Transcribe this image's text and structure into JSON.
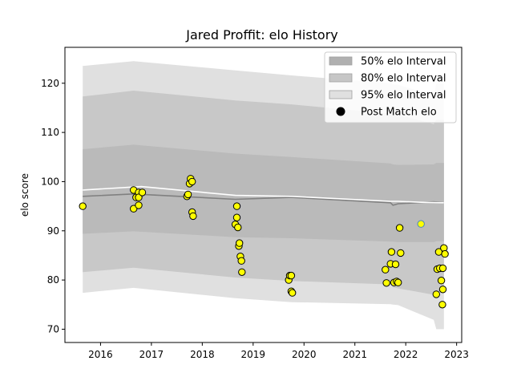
{
  "chart_data": {
    "type": "scatter",
    "title": "Jared Proffit: elo History",
    "xlabel": "",
    "ylabel": "elo score",
    "xlim": [
      2015.3,
      2023.1
    ],
    "ylim": [
      67.3,
      127.3
    ],
    "x_ticks": [
      2016,
      2017,
      2018,
      2019,
      2020,
      2021,
      2022,
      2023
    ],
    "x_tick_labels": [
      "2016",
      "2017",
      "2018",
      "2019",
      "2020",
      "2021",
      "2022",
      "2023"
    ],
    "y_ticks": [
      70,
      80,
      90,
      100,
      110,
      120
    ],
    "y_tick_labels": [
      "70",
      "80",
      "90",
      "100",
      "110",
      "120"
    ],
    "grid": false,
    "legend_position": "top-right",
    "legend": [
      {
        "label": "50% elo Interval",
        "kind": "band",
        "color": "#b0b0b0"
      },
      {
        "label": "80% elo Interval",
        "kind": "band",
        "color": "#c6c6c6"
      },
      {
        "label": "95% elo Interval",
        "kind": "band",
        "color": "#e0e0e0"
      },
      {
        "label": "Post Match elo",
        "kind": "marker",
        "color": "#000000"
      }
    ],
    "bands": {
      "x": [
        2015.65,
        2016.65,
        2018.65,
        2019.75,
        2021.7,
        2021.75,
        2021.85,
        2022.55,
        2022.6,
        2022.75
      ],
      "p95": {
        "upper": [
          123.5,
          124.5,
          122.6,
          121.6,
          120.0,
          119.8,
          119.7,
          117.5,
          119.9,
          119.9
        ],
        "lower": [
          77.4,
          78.4,
          76.3,
          75.5,
          75.1,
          75.0,
          74.9,
          71.9,
          70.0,
          70.0
        ]
      },
      "p80": {
        "upper": [
          117.3,
          118.5,
          116.5,
          115.7,
          113.8,
          113.7,
          113.6,
          111.7,
          112.6,
          112.6
        ],
        "lower": [
          81.6,
          82.5,
          80.5,
          79.8,
          79.1,
          78.5,
          78.3,
          77.0,
          77.5,
          77.5
        ]
      },
      "p50": {
        "upper": [
          106.6,
          107.5,
          105.7,
          105.0,
          103.7,
          103.5,
          103.4,
          103.5,
          103.8,
          103.8
        ],
        "lower": [
          89.4,
          89.9,
          88.7,
          88.5,
          87.8,
          87.8,
          87.7,
          87.7,
          87.9,
          87.9
        ]
      }
    },
    "series": [
      {
        "kind": "line",
        "color": "#808080",
        "x": [
          2015.65,
          2016.65,
          2018.65,
          2019.75,
          2021.7,
          2021.75,
          2021.85,
          2022.55,
          2022.75
        ],
        "y": [
          97.0,
          97.5,
          96.4,
          96.8,
          95.7,
          95.2,
          95.5,
          95.9,
          95.7
        ]
      },
      {
        "kind": "line",
        "color": "#ffffff",
        "x": [
          2015.65,
          2016.8,
          2018.65,
          2019.75,
          2021.7,
          2021.75,
          2021.85,
          2022.3,
          2022.75
        ],
        "y": [
          98.3,
          99.0,
          97.2,
          97.0,
          96.0,
          96.0,
          96.0,
          95.8,
          95.7
        ]
      },
      {
        "name": "Post Match elo",
        "kind": "scatter",
        "color": "#ffff00",
        "edge": "#000000",
        "points": [
          [
            2015.65,
            95.0
          ],
          [
            2016.65,
            98.3
          ],
          [
            2016.65,
            94.5
          ],
          [
            2016.7,
            96.8
          ],
          [
            2016.75,
            97.8
          ],
          [
            2016.75,
            96.8
          ],
          [
            2016.75,
            95.2
          ],
          [
            2016.82,
            97.8
          ],
          [
            2017.7,
            97.0
          ],
          [
            2017.72,
            97.4
          ],
          [
            2017.75,
            99.6
          ],
          [
            2017.77,
            100.6
          ],
          [
            2017.8,
            100.0
          ],
          [
            2017.8,
            93.8
          ],
          [
            2017.82,
            93.0
          ],
          [
            2018.65,
            91.3
          ],
          [
            2018.68,
            95.0
          ],
          [
            2018.68,
            92.7
          ],
          [
            2018.7,
            90.7
          ],
          [
            2018.72,
            86.9
          ],
          [
            2018.73,
            87.5
          ],
          [
            2018.75,
            84.8
          ],
          [
            2018.77,
            83.9
          ],
          [
            2018.78,
            81.6
          ],
          [
            2019.7,
            80.0
          ],
          [
            2019.72,
            80.9
          ],
          [
            2019.75,
            80.9
          ],
          [
            2019.75,
            77.7
          ],
          [
            2019.77,
            77.4
          ],
          [
            2021.6,
            82.1
          ],
          [
            2021.62,
            79.4
          ],
          [
            2021.7,
            83.3
          ],
          [
            2021.72,
            85.7
          ],
          [
            2021.77,
            79.5
          ],
          [
            2021.8,
            83.2
          ],
          [
            2021.82,
            79.7
          ],
          [
            2021.85,
            79.5
          ],
          [
            2021.88,
            90.6
          ],
          [
            2021.9,
            85.5
          ],
          [
            2022.6,
            77.1
          ],
          [
            2022.62,
            82.2
          ],
          [
            2022.65,
            85.7
          ],
          [
            2022.67,
            82.4
          ],
          [
            2022.7,
            79.9
          ],
          [
            2022.72,
            75.0
          ],
          [
            2022.73,
            82.4
          ],
          [
            2022.73,
            78.1
          ],
          [
            2022.75,
            86.5
          ],
          [
            2022.77,
            85.3
          ]
        ]
      },
      {
        "kind": "scatter",
        "color": "#ffff00",
        "edge": "#4a8ab3",
        "points": [
          [
            2022.3,
            91.4
          ]
        ]
      }
    ]
  }
}
